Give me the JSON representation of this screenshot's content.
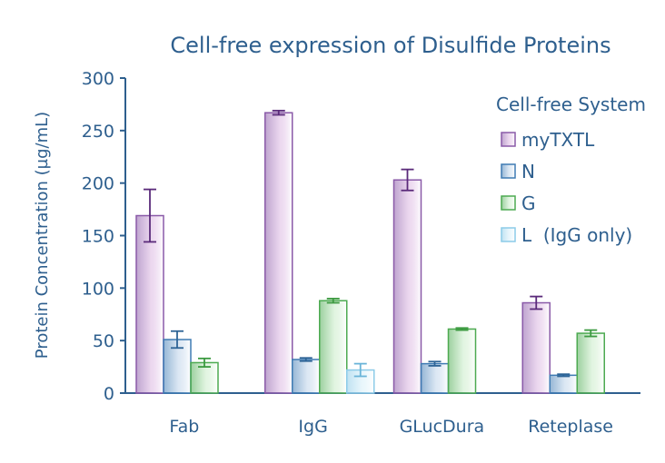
{
  "chart_data": {
    "type": "bar",
    "title": "Cell-free expression of Disulfide Proteins",
    "xlabel": "",
    "ylabel": "Protein Concentration (µg/mL)",
    "ylim": [
      0,
      300
    ],
    "yticks": [
      0,
      50,
      100,
      150,
      200,
      250,
      300
    ],
    "grid": false,
    "legend_title": "Cell-free System",
    "legend_position": "top-right",
    "categories": [
      "Fab",
      "IgG",
      "GLucDura",
      "Reteplase"
    ],
    "series": [
      {
        "name": "myTXTL",
        "values": [
          169,
          267,
          203,
          86
        ],
        "errors": [
          25,
          2,
          10,
          6
        ],
        "fill": "#dcb8e2",
        "stroke": "#8a5aa8",
        "error_color": "#5a2a7a"
      },
      {
        "name": "N",
        "values": [
          51,
          32,
          28,
          17
        ],
        "errors": [
          8,
          1.5,
          2,
          1
        ],
        "fill": "#bfd4ea",
        "stroke": "#3f7bb3",
        "error_color": "#2e6496"
      },
      {
        "name": "G",
        "values": [
          29,
          88,
          61,
          57
        ],
        "errors": [
          4,
          2,
          1,
          3
        ],
        "fill": "#c9ecc8",
        "stroke": "#4caa50",
        "error_color": "#3c9a40"
      },
      {
        "name": "L  (IgG only)",
        "values": [
          null,
          22,
          null,
          null
        ],
        "errors": [
          null,
          6,
          null,
          null
        ],
        "fill": "#d6eff9",
        "stroke": "#8ccbe8",
        "error_color": "#6ab4d8"
      }
    ]
  }
}
